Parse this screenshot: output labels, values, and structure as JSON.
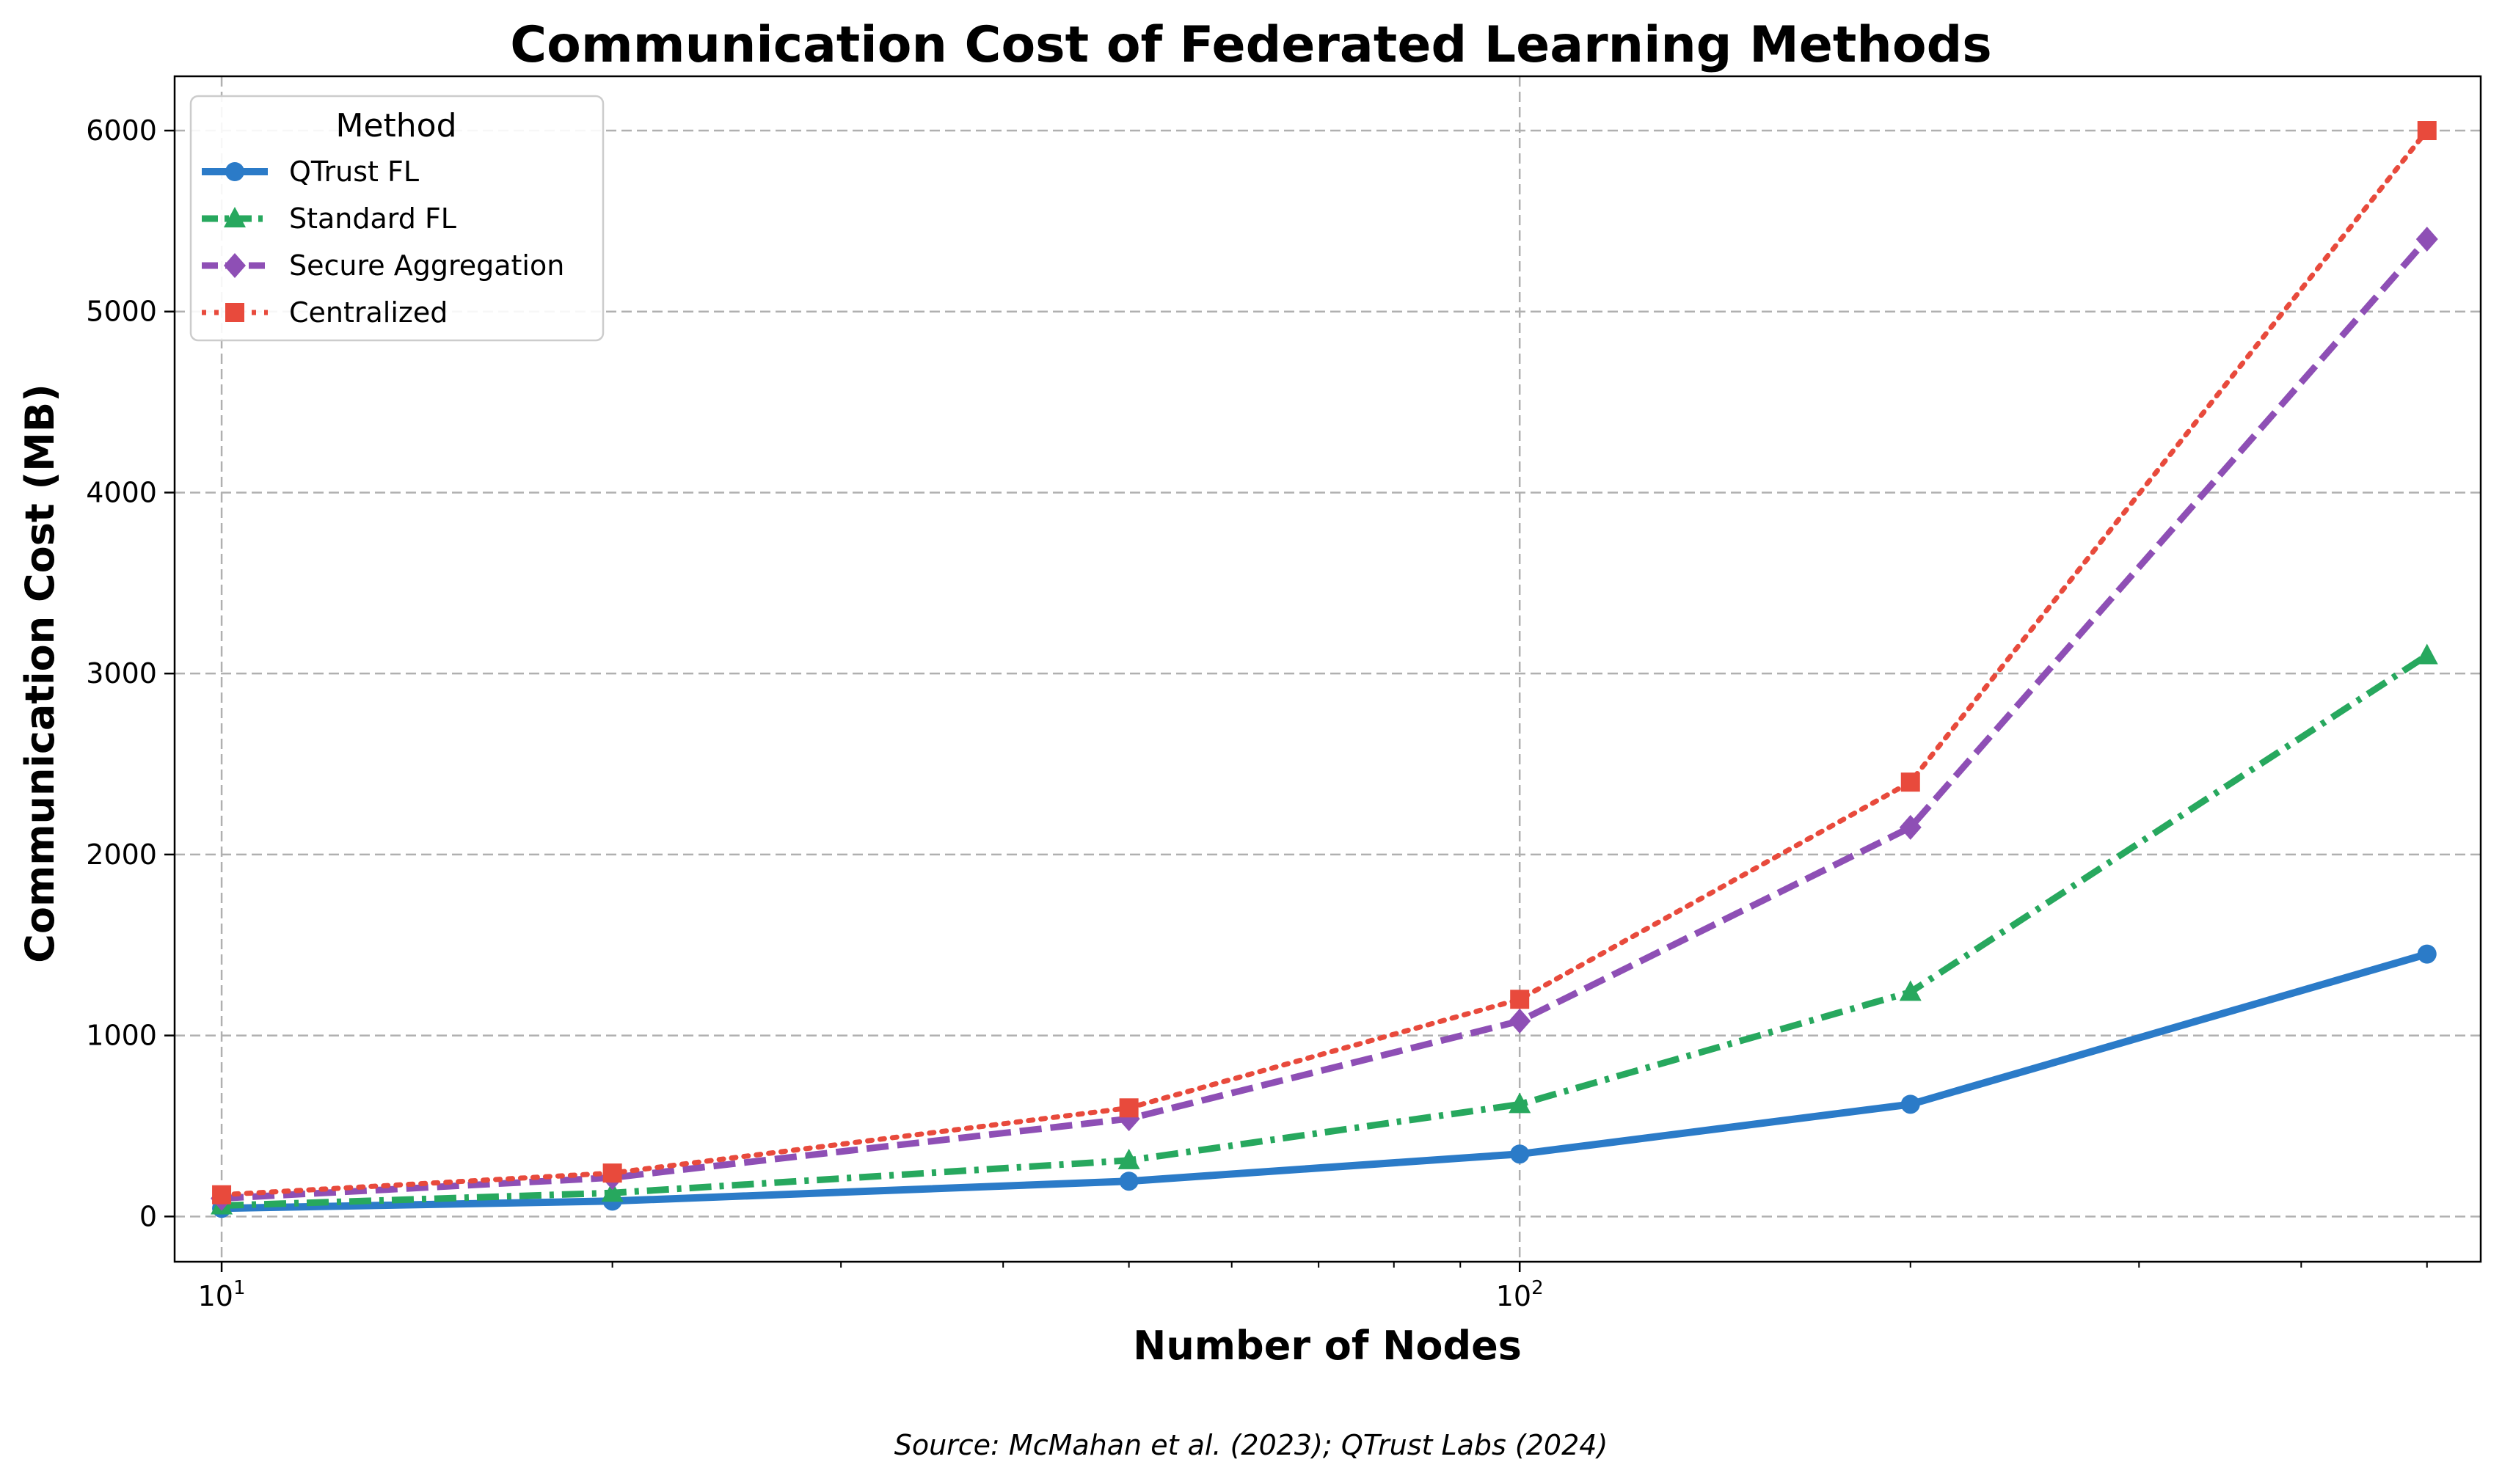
{
  "chart_data": {
    "type": "line",
    "title": "Communication Cost of Federated Learning Methods",
    "xlabel": "Number of Nodes",
    "ylabel": "Communication Cost (MB)",
    "x_scale": "log",
    "xlim": [
      9.2,
      550
    ],
    "ylim": [
      -250,
      6300
    ],
    "x_major_ticks": [
      {
        "value": 10,
        "base": "10",
        "exp": "1"
      },
      {
        "value": 100,
        "base": "10",
        "exp": "2"
      }
    ],
    "y_ticks": [
      0,
      1000,
      2000,
      3000,
      4000,
      5000,
      6000
    ],
    "y_tick_labels": [
      "0",
      "1000",
      "2000",
      "3000",
      "4000",
      "5000",
      "6000"
    ],
    "grid": true,
    "x": [
      10,
      20,
      50,
      100,
      200,
      500
    ],
    "series": [
      {
        "name": "QTrust FL",
        "values": [
          45,
          85,
          195,
          345,
          620,
          1450
        ],
        "color": "#2b7bc8",
        "linestyle": "solid",
        "marker": "circle"
      },
      {
        "name": "Standard FL",
        "values": [
          60,
          130,
          310,
          620,
          1240,
          3100
        ],
        "color": "#27a85e",
        "linestyle": "dashdot",
        "marker": "triangle"
      },
      {
        "name": "Secure Aggregation",
        "values": [
          100,
          215,
          540,
          1080,
          2150,
          5400
        ],
        "color": "#8e4fb5",
        "linestyle": "dashed",
        "marker": "diamond"
      },
      {
        "name": "Centralized",
        "values": [
          120,
          240,
          600,
          1200,
          2400,
          6000
        ],
        "color": "#e84a3c",
        "linestyle": "dotted",
        "marker": "square"
      }
    ],
    "legend": {
      "title": "Method",
      "position": "top-left"
    },
    "annotation": "Source: McMahan et al. (2023); QTrust Labs (2024)"
  }
}
